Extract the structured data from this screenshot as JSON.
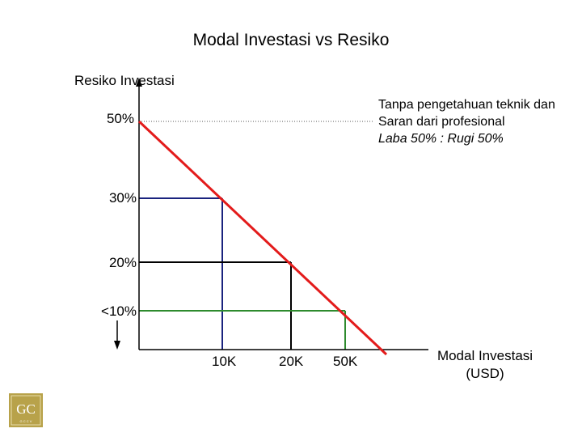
{
  "title": "Modal Investasi vs Resiko",
  "y_axis_title": "Resiko Investasi",
  "x_axis_title_line1": "Modal Investasi",
  "x_axis_title_line2": "(USD)",
  "y_ticks": [
    "50%",
    "30%",
    "20%",
    "<10%"
  ],
  "x_ticks": [
    "10K",
    "20K",
    "50K"
  ],
  "note": {
    "line1": "Tanpa pengetahuan teknik dan",
    "line2": "Saran dari profesional",
    "line3": "Laba 50% : Rugi 50%"
  },
  "logo_letters": "GC",
  "logo_small_text": "G C C V",
  "colors": {
    "risk_line": "#e31b1b",
    "level_30": "#1a237e",
    "level_20": "#000000",
    "level_10": "#2e8b2e",
    "axis": "#000000",
    "logo_bg": "#b8a24a"
  }
}
